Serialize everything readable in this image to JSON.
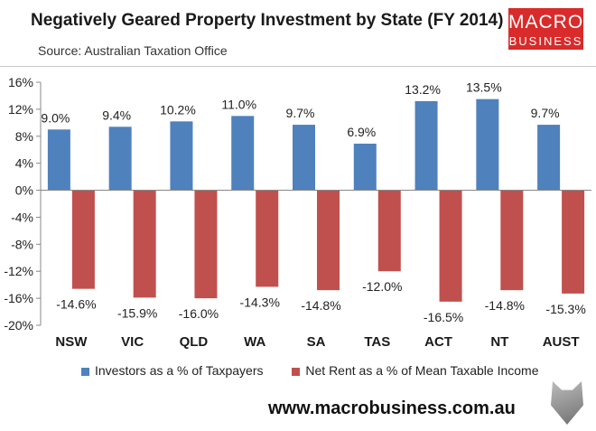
{
  "header": {
    "title": "Negatively Geared Property Investment  by State (FY 2014)",
    "subtitle": "Source: Australian Taxation Office",
    "logo_line1": "MACRO",
    "logo_line2": "BUSINESS"
  },
  "footer": {
    "url": "www.macrobusiness.com.au"
  },
  "colors": {
    "series1": "#4f81bd",
    "series2": "#c0504d",
    "logo": "#d92b2b"
  },
  "chart_data": {
    "type": "bar",
    "title": "Negatively Geared Property Investment  by State (FY 2014)",
    "xlabel": "",
    "ylabel": "",
    "ylim": [
      -20,
      16
    ],
    "yticks": [
      "16%",
      "12%",
      "8%",
      "4%",
      "0%",
      "-4%",
      "-8%",
      "-12%",
      "-16%",
      "-20%"
    ],
    "ytick_values": [
      16,
      12,
      8,
      4,
      0,
      -4,
      -8,
      -12,
      -16,
      -20
    ],
    "categories": [
      "NSW",
      "VIC",
      "QLD",
      "WA",
      "SA",
      "TAS",
      "ACT",
      "NT",
      "AUST"
    ],
    "legend_position": "bottom",
    "series": [
      {
        "name": "Investors as a % of Taxpayers",
        "values": [
          9.0,
          9.4,
          10.2,
          11.0,
          9.7,
          6.9,
          13.2,
          13.5,
          9.7
        ],
        "labels": [
          "9.0%",
          "9.4%",
          "10.2%",
          "11.0%",
          "9.7%",
          "6.9%",
          "13.2%",
          "13.5%",
          "9.7%"
        ]
      },
      {
        "name": "Net Rent as a % of Mean Taxable Income",
        "values": [
          -14.6,
          -15.9,
          -16.0,
          -14.3,
          -14.8,
          -12.0,
          -16.5,
          -14.8,
          -15.3
        ],
        "labels": [
          "-14.6%",
          "-15.9%",
          "-16.0%",
          "-14.3%",
          "-14.8%",
          "-12.0%",
          "-16.5%",
          "-14.8%",
          "-15.3%"
        ]
      }
    ]
  }
}
